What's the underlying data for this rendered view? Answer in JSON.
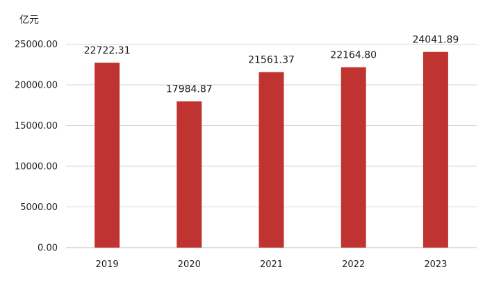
{
  "chart_data": {
    "type": "bar",
    "unit_label": "亿元",
    "categories": [
      "2019",
      "2020",
      "2021",
      "2022",
      "2023"
    ],
    "values": [
      22722.31,
      17984.87,
      21561.37,
      22164.8,
      24041.89
    ],
    "value_labels": [
      "22722.31",
      "17984.87",
      "21561.37",
      "22164.80",
      "24041.89"
    ],
    "y_ticks": [
      "0.00",
      "5000.00",
      "10000.00",
      "15000.00",
      "20000.00",
      "25000.00"
    ],
    "ylim": [
      0,
      25000
    ],
    "grid": true,
    "bar_color": "#bf3431",
    "legend": "none"
  }
}
